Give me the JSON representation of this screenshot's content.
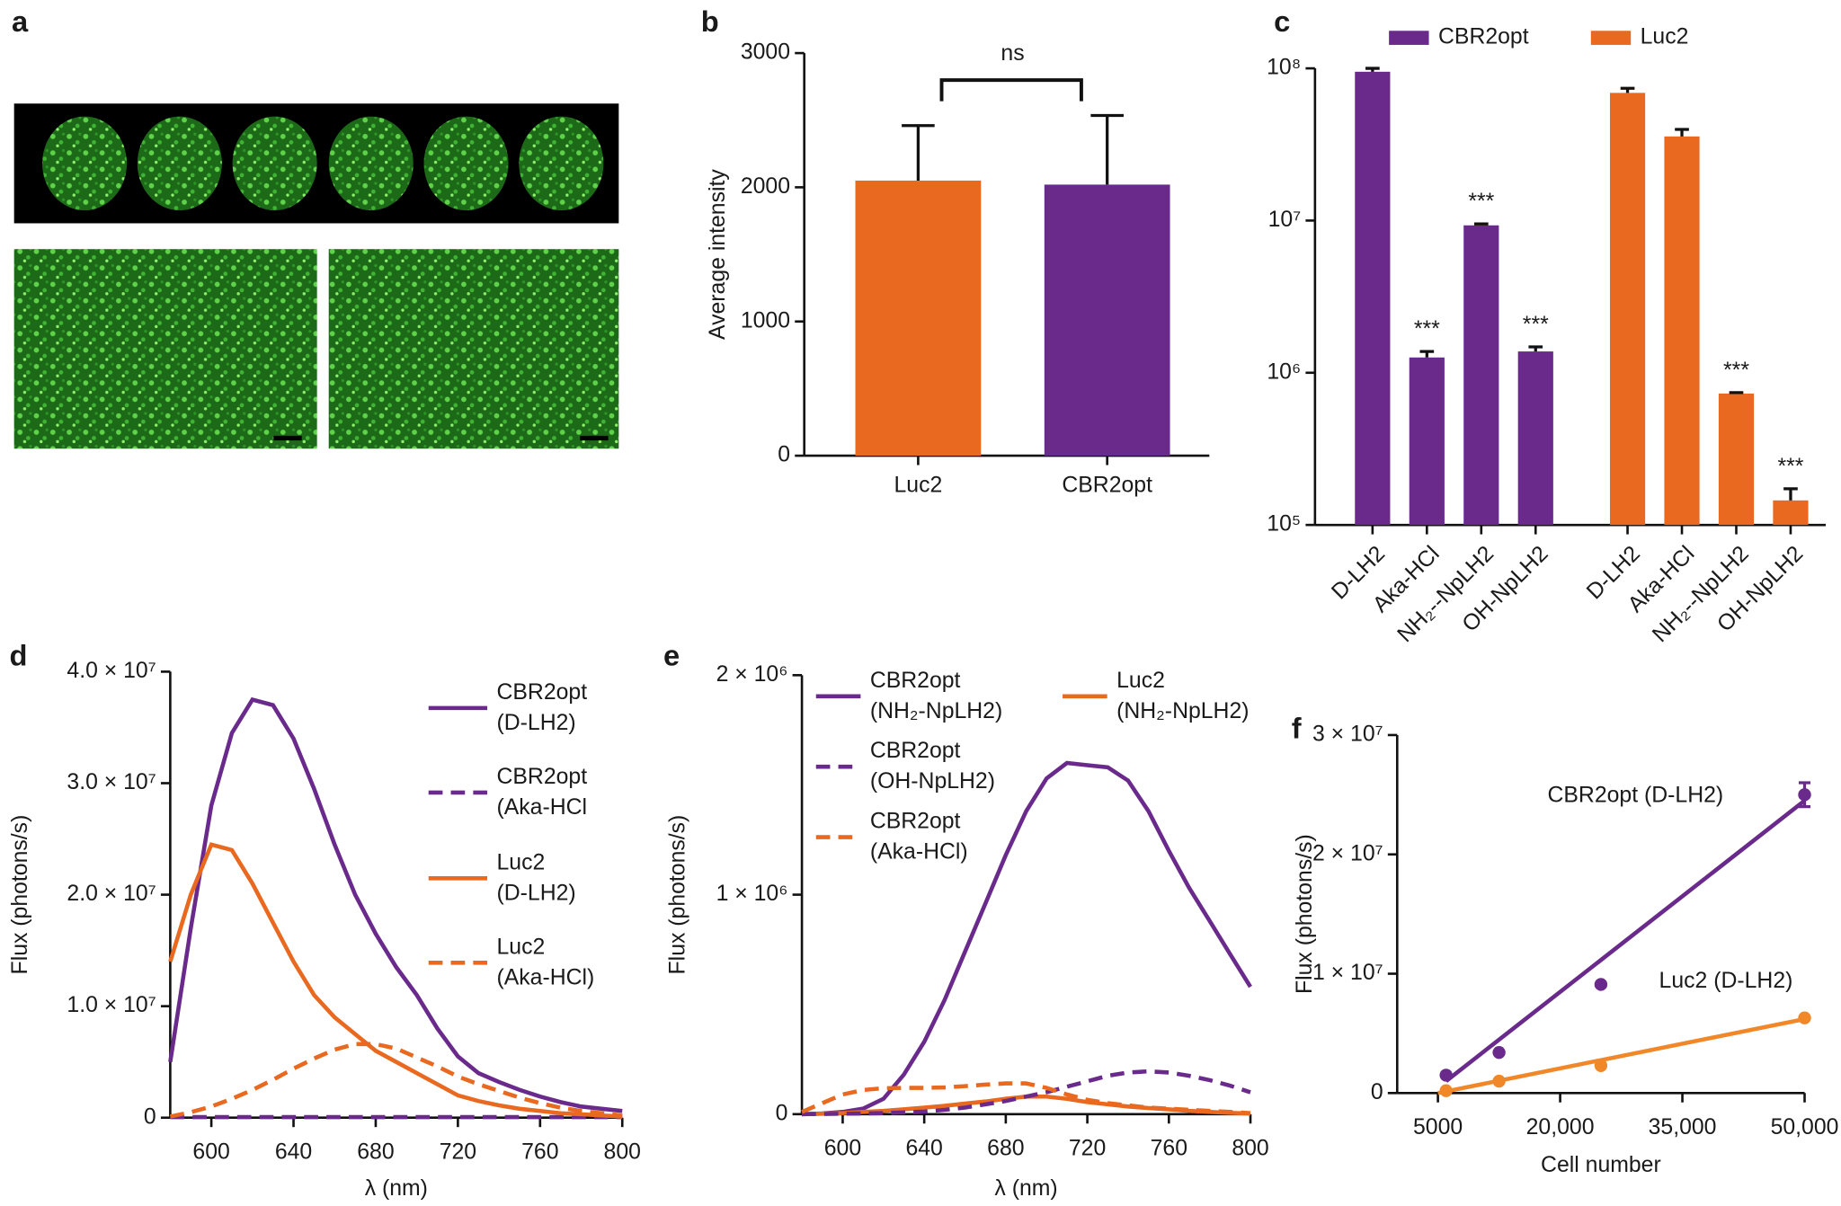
{
  "images": {
    "panel": "a"
  },
  "chart_data": [
    {
      "type": "bar",
      "panel": "b",
      "ylabel": "Average intensity",
      "categories": [
        "Luc2",
        "CBR2opt"
      ],
      "values": [
        2050,
        2020
      ],
      "errors": [
        410,
        515
      ],
      "colors": [
        "#e8691f",
        "#6a2a8c"
      ],
      "annotation": "ns",
      "ylim": [
        0,
        3000
      ],
      "yticks": [
        0,
        1000,
        2000,
        3000
      ]
    },
    {
      "type": "bar",
      "panel": "c",
      "log": true,
      "categories": [
        "D-LH2",
        "Aka-HCl",
        "NH₂--NpLH2",
        "OH-NpLH2",
        "D-LH2",
        "Aka-HCl",
        "NH₂--NpLH2",
        "OH-NpLH2"
      ],
      "series": [
        {
          "name": "CBR2opt",
          "color": "#6a2a8c",
          "values": [
            95000000,
            1260000,
            9300000,
            1380000,
            null,
            null,
            null,
            null
          ],
          "errors": [
            5000000,
            120000,
            200000,
            100000,
            null,
            null,
            null,
            null
          ],
          "significance": [
            null,
            "***",
            "***",
            "***",
            null,
            null,
            null,
            null
          ]
        },
        {
          "name": "Luc2",
          "color": "#e8691f",
          "values": [
            null,
            null,
            null,
            null,
            69000000,
            35700000,
            730000,
            145000
          ],
          "errors": [
            null,
            null,
            null,
            null,
            5000000,
            4000000,
            10000,
            28000
          ],
          "significance": [
            null,
            null,
            null,
            null,
            null,
            null,
            "***",
            "***"
          ]
        }
      ],
      "ylim": [
        100000,
        100000000
      ],
      "yticks": [
        {
          "value": 100000,
          "label": "10⁵"
        },
        {
          "value": 1000000,
          "label": "10⁶"
        },
        {
          "value": 10000000,
          "label": "10⁷"
        },
        {
          "value": 100000000,
          "label": "10⁸"
        }
      ]
    },
    {
      "type": "line",
      "panel": "d",
      "xlabel": "λ (nm)",
      "ylabel": "Flux (photons/s)",
      "x": [
        580,
        590,
        600,
        610,
        620,
        630,
        640,
        650,
        660,
        670,
        680,
        690,
        700,
        710,
        720,
        730,
        740,
        750,
        760,
        770,
        780,
        790,
        800
      ],
      "series": [
        {
          "name": "CBR2opt (D-LH2)",
          "color": "#6a2a8c",
          "dashed": false,
          "values": [
            5000000,
            17000000,
            28000000,
            34500000,
            37500000,
            37000000,
            34000000,
            29500000,
            24500000,
            20000000,
            16500000,
            13500000,
            11000000,
            8000000,
            5500000,
            4000000,
            3200000,
            2500000,
            1900000,
            1400000,
            1000000,
            800000,
            600000
          ]
        },
        {
          "name": "CBR2opt (Aka-HCl",
          "color": "#6a2a8c",
          "dashed": true,
          "values": [
            50000,
            50000,
            50000,
            50000,
            50000,
            50000,
            50000,
            50000,
            50000,
            50000,
            50000,
            50000,
            50000,
            50000,
            50000,
            50000,
            50000,
            50000,
            50000,
            50000,
            50000,
            50000,
            50000
          ]
        },
        {
          "name": "Luc2 (D-LH2)",
          "color": "#e8691f",
          "dashed": false,
          "values": [
            14000000,
            20000000,
            24500000,
            24000000,
            21000000,
            17500000,
            14000000,
            11000000,
            9000000,
            7500000,
            6000000,
            5000000,
            4000000,
            3000000,
            2000000,
            1500000,
            1100000,
            800000,
            600000,
            400000,
            300000,
            200000,
            100000
          ]
        },
        {
          "name": "Luc2 (Aka-HCl)",
          "color": "#e8691f",
          "dashed": true,
          "values": [
            100000,
            500000,
            1000000,
            1700000,
            2500000,
            3400000,
            4400000,
            5300000,
            6100000,
            6600000,
            6600000,
            6200000,
            5400000,
            4600000,
            3700000,
            3000000,
            2400000,
            1800000,
            1300000,
            900000,
            600000,
            400000,
            200000
          ]
        }
      ],
      "xlim": [
        580,
        800
      ],
      "xticks": [
        600,
        640,
        680,
        720,
        760,
        800
      ],
      "ylim": [
        0,
        40000000
      ],
      "yticks": [
        0,
        {
          "value": 10000000,
          "label": "1.0 × 10⁷"
        },
        {
          "value": 20000000,
          "label": "2.0 × 10⁷"
        },
        {
          "value": 30000000,
          "label": "3.0 × 10⁷"
        },
        {
          "value": 40000000,
          "label": "4.0 × 10⁷"
        }
      ]
    },
    {
      "type": "line",
      "panel": "e",
      "xlabel": "λ (nm)",
      "ylabel": "Flux (photons/s)",
      "x": [
        580,
        590,
        600,
        610,
        620,
        630,
        640,
        650,
        660,
        670,
        680,
        690,
        700,
        710,
        720,
        730,
        740,
        750,
        760,
        770,
        780,
        790,
        800
      ],
      "series": [
        {
          "name": "CBR2opt (NH₂-NpLH2)",
          "color": "#6a2a8c",
          "dashed": false,
          "values": [
            0,
            3000,
            10000,
            25000,
            70000,
            180000,
            330000,
            520000,
            740000,
            960000,
            1180000,
            1380000,
            1530000,
            1600000,
            1590000,
            1580000,
            1520000,
            1380000,
            1200000,
            1030000,
            880000,
            730000,
            580000
          ]
        },
        {
          "name": "Luc2 (NH₂-NpLH2)",
          "color": "#e8691f",
          "dashed": false,
          "values": [
            0,
            2000,
            5000,
            10000,
            15000,
            22000,
            30000,
            38000,
            48000,
            58000,
            70000,
            80000,
            80000,
            70000,
            55000,
            45000,
            35000,
            28000,
            22000,
            15000,
            10000,
            6000,
            3000
          ]
        },
        {
          "name": "CBR2opt (OH-NpLH2)",
          "color": "#6a2a8c",
          "dashed": true,
          "values": [
            0,
            1000,
            2000,
            3000,
            5000,
            8000,
            12000,
            20000,
            30000,
            45000,
            60000,
            80000,
            100000,
            125000,
            150000,
            175000,
            190000,
            195000,
            190000,
            175000,
            155000,
            130000,
            100000
          ]
        },
        {
          "name": "CBR2opt (Aka-HCl)",
          "color": "#e8691f",
          "dashed": true,
          "values": [
            10000,
            50000,
            90000,
            110000,
            118000,
            120000,
            120000,
            122000,
            128000,
            135000,
            140000,
            140000,
            120000,
            90000,
            65000,
            50000,
            40000,
            30000,
            25000,
            20000,
            15000,
            10000,
            5000
          ]
        }
      ],
      "xlim": [
        580,
        800
      ],
      "xticks": [
        600,
        640,
        680,
        720,
        760,
        800
      ],
      "ylim": [
        0,
        2000000
      ],
      "yticks": [
        0,
        {
          "value": 1000000,
          "label": "1 × 10⁶"
        },
        {
          "value": 2000000,
          "label": "2 × 10⁶"
        }
      ]
    },
    {
      "type": "scatter",
      "panel": "f",
      "xlabel": "Cell number",
      "ylabel": "Flux (photons/s)",
      "series": [
        {
          "name": "CBR2opt (D-LH2)",
          "color": "#6a2a8c",
          "x": [
            6000,
            12500,
            25000,
            50000
          ],
          "values": [
            1500000,
            3400000,
            9100000,
            25000000
          ],
          "errors": [
            null,
            null,
            null,
            1000000
          ],
          "fit": {
            "x": [
              6000,
              50000
            ],
            "values": [
              1000000,
              24500000
            ]
          }
        },
        {
          "name": "Luc2 (D-LH2)",
          "color": "#f0882a",
          "x": [
            6000,
            12500,
            25000,
            50000
          ],
          "values": [
            200000,
            1000000,
            2300000,
            6300000
          ],
          "errors": [
            null,
            null,
            null,
            null
          ],
          "fit": {
            "x": [
              5000,
              50000
            ],
            "values": [
              0,
              6200000
            ]
          }
        }
      ],
      "xlim": [
        0,
        50000
      ],
      "xticks": [
        5000,
        {
          "value": 20000,
          "label": "20,000"
        },
        {
          "value": 35000,
          "label": "35,000"
        },
        {
          "value": 50000,
          "label": "50,000"
        }
      ],
      "ylim": [
        0,
        30000000
      ],
      "yticks": [
        0,
        {
          "value": 10000000,
          "label": "1 × 10⁷"
        },
        {
          "value": 20000000,
          "label": "2 × 10⁷"
        },
        {
          "value": 30000000,
          "label": "3 × 10⁷"
        }
      ]
    }
  ]
}
